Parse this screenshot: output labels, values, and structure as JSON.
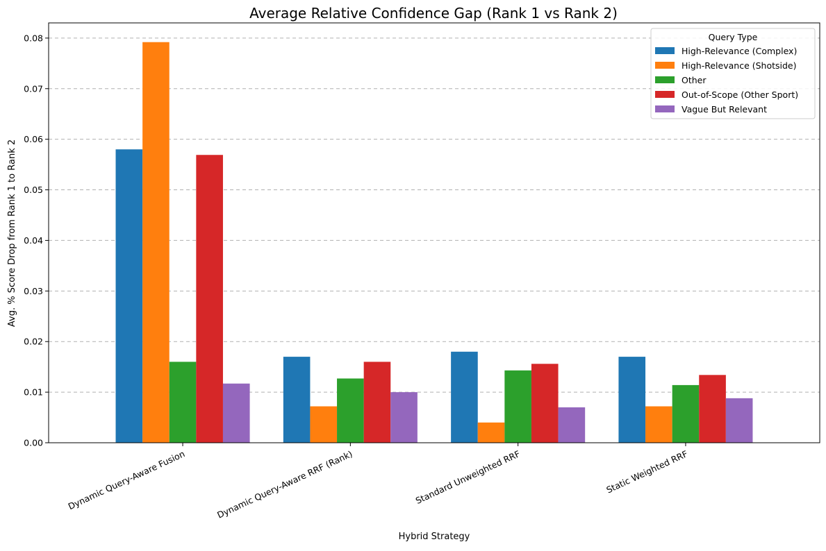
{
  "chart_data": {
    "type": "bar",
    "title": "Average Relative Confidence Gap (Rank 1 vs Rank 2)",
    "xlabel": "Hybrid Strategy",
    "ylabel": "Avg. % Score Drop from Rank 1 to Rank 2",
    "ylim": [
      0,
      0.083
    ],
    "yticks": [
      "0.00",
      "0.01",
      "0.02",
      "0.03",
      "0.04",
      "0.05",
      "0.06",
      "0.07",
      "0.08"
    ],
    "grid": true,
    "legend_title": "Query Type",
    "legend_position": "top-right",
    "categories": [
      "Dynamic Query-Aware Fusion",
      "Dynamic Query-Aware RRF (Rank)",
      "Standard Unweighted RRF",
      "Static Weighted RRF"
    ],
    "series": [
      {
        "name": "High-Relevance (Complex)",
        "color": "#1f77b4",
        "values": [
          0.058,
          0.017,
          0.018,
          0.017
        ]
      },
      {
        "name": "High-Relevance (Shotside)",
        "color": "#ff7f0e",
        "values": [
          0.0792,
          0.0072,
          0.004,
          0.0072
        ]
      },
      {
        "name": "Other",
        "color": "#2ca02c",
        "values": [
          0.016,
          0.0127,
          0.0143,
          0.0114
        ]
      },
      {
        "name": "Out-of-Scope (Other Sport)",
        "color": "#d62728",
        "values": [
          0.0569,
          0.016,
          0.0156,
          0.0134
        ]
      },
      {
        "name": "Vague But Relevant",
        "color": "#9467bd",
        "values": [
          0.0117,
          0.01,
          0.007,
          0.0088
        ]
      }
    ]
  }
}
